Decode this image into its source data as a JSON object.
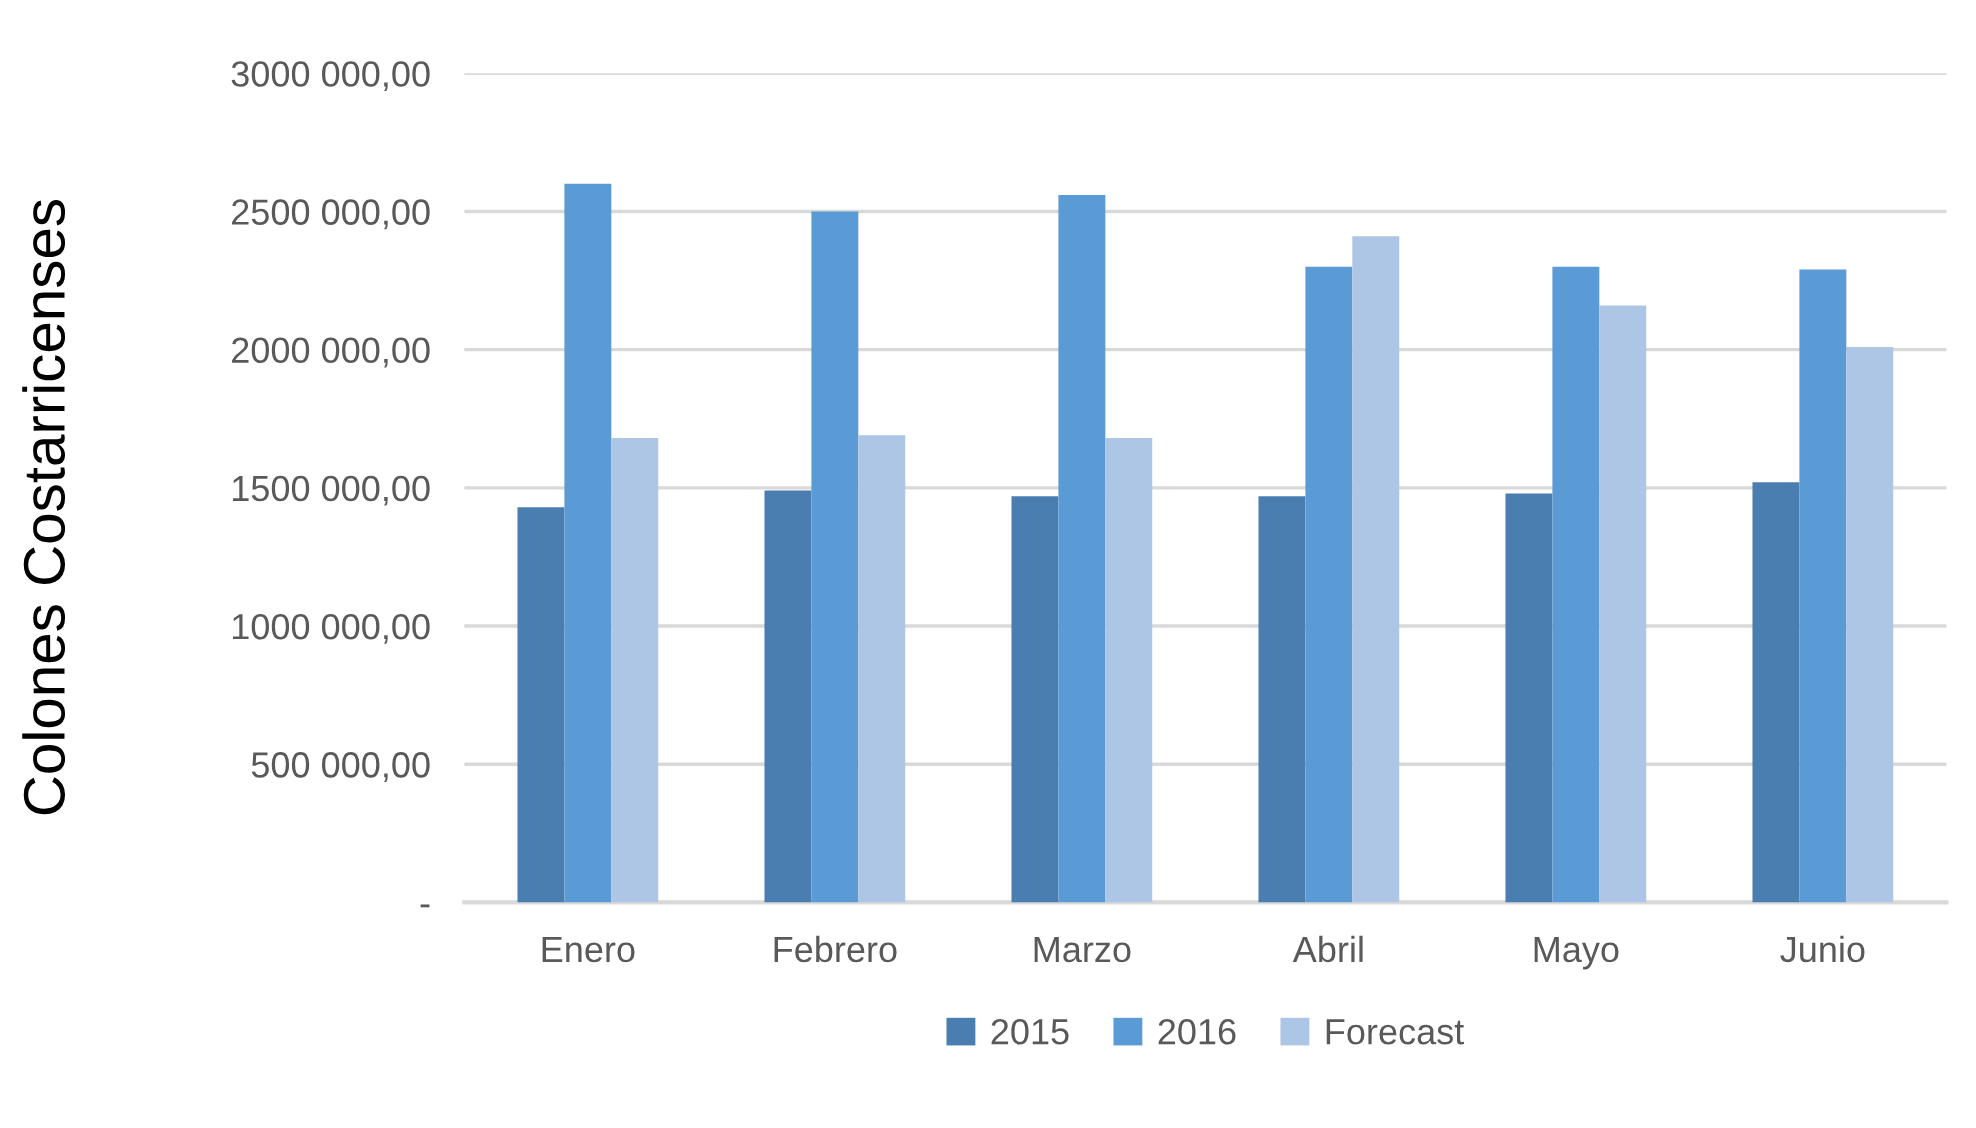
{
  "chart_data": {
    "type": "bar",
    "ylabel": "Colones Costarricenses",
    "categories": [
      "Enero",
      "Febrero",
      "Marzo",
      "Abril",
      "Mayo",
      "Junio"
    ],
    "series": [
      {
        "name": "2015",
        "color": "#4a7eb0",
        "values": [
          1430000,
          1490000,
          1470000,
          1470000,
          1480000,
          1520000
        ]
      },
      {
        "name": "2016",
        "color": "#5b9bd5",
        "values": [
          2600000,
          2500000,
          2560000,
          2300000,
          2300000,
          2290000
        ]
      },
      {
        "name": "Forecast",
        "color": "#adc6e5",
        "values": [
          1680000,
          1690000,
          1680000,
          2410000,
          2160000,
          2010000
        ]
      }
    ],
    "ylim": [
      0,
      3000000
    ],
    "yticks": [
      {
        "value": 0,
        "label": "-"
      },
      {
        "value": 500000,
        "label": "500 000,00"
      },
      {
        "value": 1000000,
        "label": "1000 000,00"
      },
      {
        "value": 1500000,
        "label": "1500 000,00"
      },
      {
        "value": 2000000,
        "label": "2000 000,00"
      },
      {
        "value": 2500000,
        "label": "2500 000,00"
      },
      {
        "value": 3000000,
        "label": "3000 000,00"
      }
    ],
    "grid": "y",
    "legend": "bottom"
  }
}
